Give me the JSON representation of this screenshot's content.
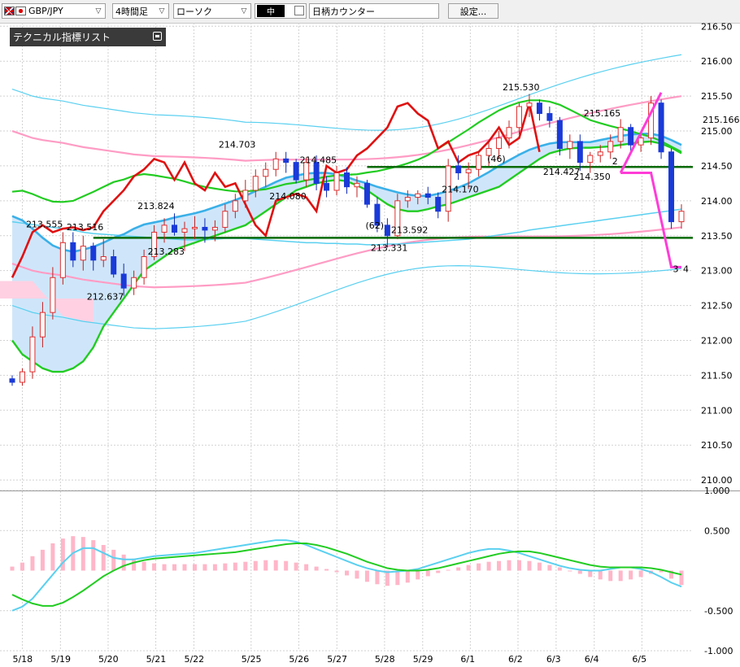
{
  "toolbar": {
    "pair": "GBP/JPY",
    "period": "4時間足",
    "chart_type": "ローソク",
    "color": "中",
    "counter": "日柄カウンター",
    "settings": "設定..."
  },
  "panel": {
    "title": "テクニカル指標リスト"
  },
  "colors": {
    "bull": "#e03030",
    "bear": "#1a3ad8",
    "ichimoku_span": "#3ab0e8",
    "bb_outer": "#5ad0f0",
    "bb_mid": "#ff9cc4",
    "ma_green": "#22cc22",
    "chikou": "#e01010",
    "annotation": "#ff3cd8",
    "support_line": "#0a6a0a",
    "cloud_fill": "#cfe6fa",
    "cloud_fill_red": "#ffd0e2"
  },
  "chart_data": {
    "type": "line",
    "main": {
      "y_ticks": [
        "210.00",
        "210.50",
        "211.00",
        "211.50",
        "212.00",
        "212.50",
        "213.00",
        "213.50",
        "214.00",
        "214.50",
        "215.00",
        "215.50",
        "216.00",
        "216.50"
      ],
      "ylim": [
        209.85,
        216.55
      ],
      "right_labels": [
        "215.166"
      ],
      "x_ticks": [
        "5/18",
        "5/19",
        "5/20",
        "5/21",
        "5/22",
        "5/25",
        "5/26",
        "5/27",
        "5/28",
        "5/29",
        "6/1",
        "6/2",
        "6/3",
        "6/4",
        "6/5"
      ],
      "price_labels": [
        "213.555",
        "213.516",
        "212.637",
        "213.824",
        "213.283",
        "214.703",
        "214.485",
        "214.080",
        "213.331",
        "213.592",
        "214.170",
        "215.530",
        "214.427",
        "214.350",
        "215.165"
      ],
      "count_labels": [
        "(62)",
        "(46)",
        "2",
        "3",
        "4"
      ],
      "horizontal_lines": [
        214.485,
        213.47
      ],
      "candles": [
        [
          211.45,
          211.5,
          211.35,
          211.4
        ],
        [
          211.4,
          211.6,
          211.35,
          211.55
        ],
        [
          211.55,
          212.2,
          211.45,
          212.05
        ],
        [
          212.05,
          212.55,
          211.9,
          212.4
        ],
        [
          212.4,
          213.05,
          212.3,
          212.9
        ],
        [
          212.9,
          213.55,
          212.8,
          213.4
        ],
        [
          213.4,
          213.55,
          213.05,
          213.15
        ],
        [
          213.15,
          213.5,
          213.0,
          213.35
        ],
        [
          213.35,
          213.4,
          213.0,
          213.15
        ],
        [
          213.15,
          213.45,
          213.05,
          213.2
        ],
        [
          213.2,
          213.3,
          212.9,
          212.95
        ],
        [
          212.95,
          213.1,
          212.64,
          212.75
        ],
        [
          212.75,
          213.0,
          212.65,
          212.9
        ],
        [
          212.9,
          213.3,
          212.8,
          213.2
        ],
        [
          213.2,
          213.65,
          213.15,
          213.55
        ],
        [
          213.55,
          213.75,
          213.4,
          213.65
        ],
        [
          213.65,
          213.82,
          213.5,
          213.55
        ],
        [
          213.55,
          213.7,
          213.28,
          213.6
        ],
        [
          213.6,
          213.78,
          213.45,
          213.62
        ],
        [
          213.62,
          213.75,
          213.4,
          213.58
        ],
        [
          213.58,
          213.72,
          213.42,
          213.62
        ],
        [
          213.62,
          213.95,
          213.55,
          213.85
        ],
        [
          213.85,
          214.1,
          213.75,
          214.0
        ],
        [
          214.0,
          214.3,
          213.9,
          214.15
        ],
        [
          214.15,
          214.45,
          214.05,
          214.35
        ],
        [
          214.35,
          214.55,
          214.2,
          214.45
        ],
        [
          214.45,
          214.7,
          214.35,
          214.6
        ],
        [
          214.6,
          214.7,
          214.4,
          214.55
        ],
        [
          214.55,
          214.6,
          214.25,
          214.3
        ],
        [
          214.3,
          214.62,
          214.2,
          214.55
        ],
        [
          214.55,
          214.65,
          214.15,
          214.25
        ],
        [
          214.25,
          214.35,
          214.05,
          214.15
        ],
        [
          214.15,
          214.5,
          214.08,
          214.4
        ],
        [
          214.4,
          214.48,
          214.1,
          214.2
        ],
        [
          214.2,
          214.35,
          214.05,
          214.25
        ],
        [
          214.25,
          214.3,
          213.9,
          213.95
        ],
        [
          213.95,
          214.05,
          213.55,
          213.65
        ],
        [
          213.65,
          213.75,
          213.33,
          213.5
        ],
        [
          213.5,
          214.1,
          213.45,
          214.0
        ],
        [
          214.0,
          214.15,
          213.9,
          214.05
        ],
        [
          214.05,
          214.15,
          213.95,
          214.1
        ],
        [
          214.1,
          214.2,
          213.95,
          214.05
        ],
        [
          214.05,
          214.12,
          213.75,
          213.85
        ],
        [
          213.85,
          214.6,
          213.7,
          214.5
        ],
        [
          214.5,
          214.65,
          214.3,
          214.4
        ],
        [
          214.4,
          214.55,
          214.17,
          214.45
        ],
        [
          214.45,
          214.7,
          214.35,
          214.65
        ],
        [
          214.65,
          214.85,
          214.5,
          214.75
        ],
        [
          214.75,
          215.0,
          214.6,
          214.9
        ],
        [
          214.9,
          215.15,
          214.75,
          215.05
        ],
        [
          215.05,
          215.4,
          214.95,
          215.35
        ],
        [
          215.35,
          215.53,
          215.2,
          215.4
        ],
        [
          215.4,
          215.45,
          215.15,
          215.25
        ],
        [
          215.25,
          215.35,
          215.05,
          215.15
        ],
        [
          215.15,
          215.2,
          214.65,
          214.75
        ],
        [
          214.75,
          214.95,
          214.6,
          214.85
        ],
        [
          214.85,
          214.95,
          214.43,
          214.55
        ],
        [
          214.55,
          214.7,
          214.4,
          214.65
        ],
        [
          214.65,
          214.8,
          214.55,
          214.7
        ],
        [
          214.7,
          214.95,
          214.6,
          214.85
        ],
        [
          214.85,
          215.17,
          214.75,
          215.05
        ],
        [
          215.05,
          215.1,
          214.7,
          214.8
        ],
        [
          214.8,
          214.95,
          214.7,
          214.9
        ],
        [
          214.9,
          215.5,
          214.8,
          215.4
        ],
        [
          215.4,
          215.45,
          214.6,
          214.7
        ],
        [
          214.7,
          214.75,
          213.6,
          213.7
        ],
        [
          213.7,
          213.95,
          213.6,
          213.85
        ]
      ],
      "series": [
        {
          "name": "",
          "values": [
            213.78,
            213.72,
            213.6,
            213.47,
            213.36,
            213.3,
            213.27,
            213.3,
            213.34,
            213.4,
            213.47,
            213.52,
            213.6,
            213.66,
            213.69,
            213.72,
            213.76,
            213.79,
            213.82,
            213.86,
            213.91,
            213.96,
            214.01,
            214.07,
            214.14,
            214.2,
            214.27,
            214.33,
            214.36,
            214.39,
            214.4,
            214.4,
            214.38,
            214.34,
            214.29,
            214.25,
            214.2,
            214.16,
            214.12,
            214.09,
            214.07,
            214.07,
            214.1,
            214.14,
            214.19,
            214.25,
            214.33,
            214.41,
            214.5,
            214.58,
            214.66,
            214.73,
            214.78,
            214.82,
            214.84,
            214.84,
            214.84,
            214.84,
            214.87,
            214.9,
            214.93,
            214.95,
            214.96,
            214.96,
            214.93,
            214.87,
            214.8
          ]
        },
        {
          "name": "",
          "values": [
            212.0,
            211.8,
            211.7,
            211.6,
            211.55,
            211.55,
            211.6,
            211.7,
            211.9,
            212.2,
            212.4,
            212.6,
            212.8,
            213.0,
            213.1,
            213.2,
            213.3,
            213.35,
            213.4,
            213.45,
            213.5,
            213.55,
            213.6,
            213.65,
            213.75,
            213.85,
            213.95,
            214.05,
            214.15,
            214.2,
            214.25,
            214.28,
            214.3,
            214.28,
            214.22,
            214.15,
            214.05,
            213.95,
            213.88,
            213.85,
            213.85,
            213.88,
            213.92,
            213.95,
            214.0,
            214.05,
            214.1,
            214.15,
            214.2,
            214.3,
            214.4,
            214.5,
            214.6,
            214.68,
            214.72,
            214.75,
            214.76,
            214.76,
            214.77,
            214.78,
            214.8,
            214.82,
            214.84,
            214.85,
            214.82,
            214.76,
            214.68
          ]
        },
        {
          "name": "",
          "values": [
            213.7,
            213.68,
            213.66,
            213.64,
            213.62,
            213.6,
            213.58,
            213.55,
            213.53,
            213.52,
            213.51,
            213.5,
            213.49,
            213.48,
            213.47,
            213.46,
            213.45,
            213.44,
            213.44,
            213.44,
            213.45,
            213.46,
            213.46,
            213.46,
            213.45,
            213.44,
            213.43,
            213.42,
            213.41,
            213.4,
            213.4,
            213.39,
            213.39,
            213.38,
            213.38,
            213.37,
            213.37,
            213.38,
            213.38,
            213.39,
            213.4,
            213.41,
            213.42,
            213.43,
            213.44,
            213.45,
            213.47,
            213.49,
            213.51,
            213.53,
            213.55,
            213.58,
            213.6,
            213.62,
            213.64,
            213.66,
            213.68,
            213.7,
            213.72,
            213.74,
            213.76,
            213.78,
            213.8,
            213.82,
            213.84,
            213.86,
            213.88
          ]
        },
        {
          "name": "",
          "values": [
            214.05,
            214.0,
            213.95,
            213.92,
            213.9,
            213.88,
            213.85,
            213.82,
            213.8,
            213.78,
            213.76,
            213.74,
            213.72,
            213.71,
            213.7,
            213.7,
            213.7,
            213.7,
            213.7,
            213.7,
            213.7,
            213.7,
            213.7,
            213.7,
            213.72,
            213.74,
            213.76,
            213.78,
            213.8,
            213.82,
            213.84,
            213.86,
            213.88,
            213.9,
            213.92,
            213.94,
            213.96,
            213.98,
            214.0,
            214.02,
            214.04,
            214.06,
            214.08,
            214.1,
            214.12,
            214.14,
            214.16,
            214.18,
            214.2,
            214.22,
            214.24,
            214.26,
            214.28,
            214.3,
            214.32,
            214.34,
            214.36,
            214.38,
            214.4,
            214.42,
            214.44,
            214.46,
            214.48,
            214.5,
            214.52,
            214.54,
            214.56
          ]
        }
      ]
    },
    "oscillator": {
      "y_ticks": [
        "1.000",
        "0.500",
        "-0.500",
        "-1.000"
      ],
      "ylim": [
        -1.0,
        1.0
      ],
      "histogram": [
        0.05,
        0.1,
        0.18,
        0.26,
        0.34,
        0.4,
        0.43,
        0.42,
        0.38,
        0.32,
        0.26,
        0.2,
        0.15,
        0.11,
        0.09,
        0.08,
        0.08,
        0.08,
        0.08,
        0.08,
        0.08,
        0.09,
        0.1,
        0.11,
        0.12,
        0.13,
        0.13,
        0.12,
        0.1,
        0.08,
        0.05,
        0.02,
        -0.02,
        -0.06,
        -0.1,
        -0.14,
        -0.17,
        -0.19,
        -0.18,
        -0.15,
        -0.11,
        -0.07,
        -0.03,
        0.01,
        0.04,
        0.07,
        0.09,
        0.11,
        0.12,
        0.13,
        0.13,
        0.12,
        0.1,
        0.07,
        0.04,
        0.0,
        -0.04,
        -0.08,
        -0.11,
        -0.13,
        -0.13,
        -0.11,
        -0.08,
        -0.04,
        -0.02,
        -0.1,
        -0.18
      ],
      "series": [
        {
          "name": "",
          "values": [
            -0.5,
            -0.45,
            -0.35,
            -0.2,
            -0.05,
            0.1,
            0.22,
            0.28,
            0.28,
            0.22,
            0.16,
            0.14,
            0.14,
            0.16,
            0.18,
            0.19,
            0.2,
            0.21,
            0.22,
            0.24,
            0.26,
            0.28,
            0.3,
            0.32,
            0.34,
            0.36,
            0.38,
            0.38,
            0.36,
            0.32,
            0.27,
            0.22,
            0.17,
            0.12,
            0.07,
            0.03,
            0.0,
            -0.02,
            -0.01,
            0.0,
            0.02,
            0.06,
            0.1,
            0.14,
            0.18,
            0.22,
            0.25,
            0.27,
            0.27,
            0.25,
            0.22,
            0.18,
            0.14,
            0.1,
            0.06,
            0.03,
            0.01,
            0.0,
            0.0,
            0.02,
            0.04,
            0.04,
            0.02,
            -0.02,
            -0.08,
            -0.15,
            -0.2
          ]
        },
        {
          "name": "",
          "values": [
            -0.3,
            -0.36,
            -0.41,
            -0.44,
            -0.44,
            -0.4,
            -0.33,
            -0.25,
            -0.16,
            -0.07,
            0.0,
            0.06,
            0.1,
            0.13,
            0.15,
            0.16,
            0.17,
            0.18,
            0.19,
            0.2,
            0.21,
            0.22,
            0.23,
            0.25,
            0.27,
            0.29,
            0.31,
            0.33,
            0.34,
            0.34,
            0.32,
            0.29,
            0.25,
            0.21,
            0.16,
            0.11,
            0.07,
            0.03,
            0.01,
            0.0,
            0.0,
            0.01,
            0.03,
            0.06,
            0.09,
            0.12,
            0.15,
            0.18,
            0.21,
            0.23,
            0.24,
            0.24,
            0.22,
            0.19,
            0.16,
            0.13,
            0.1,
            0.07,
            0.05,
            0.04,
            0.04,
            0.04,
            0.04,
            0.03,
            0.01,
            -0.02,
            -0.05
          ]
        }
      ]
    }
  }
}
